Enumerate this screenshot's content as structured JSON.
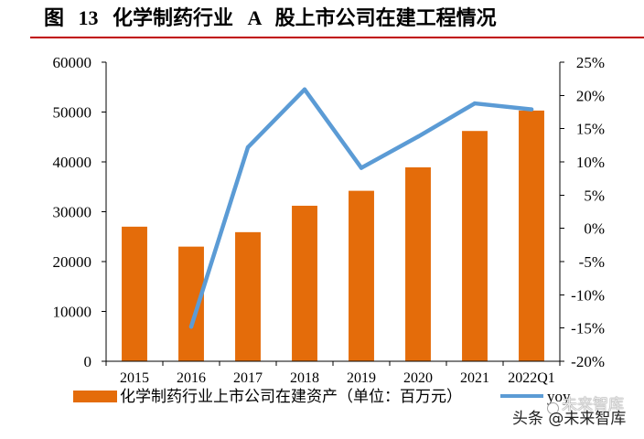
{
  "chart_data": {
    "type": "bar",
    "title": "图 13 化学制药行业 A 股上市公司在建工程情况",
    "categories": [
      "2015",
      "2016",
      "2017",
      "2018",
      "2019",
      "2020",
      "2021",
      "2022Q1"
    ],
    "series": [
      {
        "name": "化学制药行业上市公司在建资产（单位：百万元）",
        "type": "bar",
        "y_axis": "left",
        "color": "#E46C0A",
        "values": [
          27000,
          23000,
          25900,
          31200,
          34200,
          38900,
          46200,
          50300
        ]
      },
      {
        "name": "yoy",
        "type": "line",
        "y_axis": "right",
        "color": "#5B9BD5",
        "values": [
          null,
          -14.8,
          12.2,
          20.9,
          9.1,
          13.8,
          18.8,
          17.9
        ]
      }
    ],
    "y_left": {
      "min": 0,
      "max": 60000,
      "step": 10000,
      "tick_labels": [
        "0",
        "10000",
        "20000",
        "30000",
        "40000",
        "50000",
        "60000"
      ]
    },
    "y_right": {
      "min": -20,
      "max": 25,
      "step": 5,
      "tick_labels": [
        "-20%",
        "-15%",
        "-10%",
        "-5%",
        "0%",
        "5%",
        "10%",
        "15%",
        "20%",
        "25%"
      ]
    },
    "grid": false,
    "legend_position": "bottom"
  },
  "colors": {
    "title_rule": "#C00000",
    "axis": "#000000"
  },
  "watermark": {
    "text": "头条 @未来智库",
    "ghost_text": "未来智库",
    "logo_icon": "watermark-logo-icon"
  }
}
